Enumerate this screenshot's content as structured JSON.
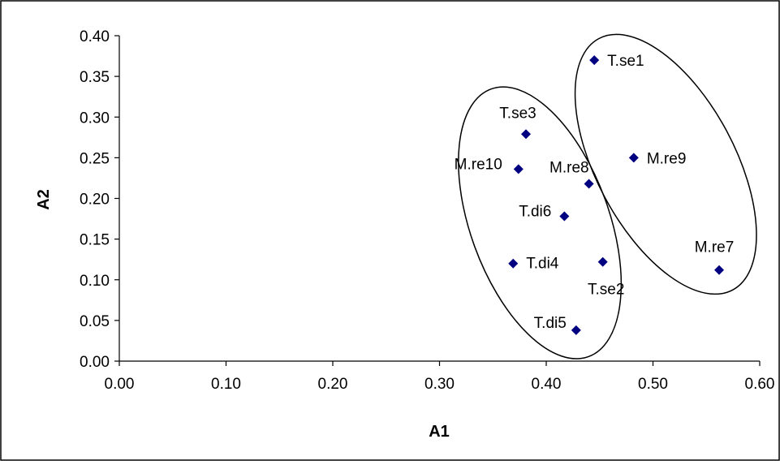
{
  "chart_data": {
    "type": "scatter",
    "title": "",
    "xlabel": "A1",
    "ylabel": "A2",
    "xlim": [
      0,
      0.6
    ],
    "ylim": [
      0,
      0.4
    ],
    "xticks": [
      "0.00",
      "0.10",
      "0.20",
      "0.30",
      "0.40",
      "0.50",
      "0.60"
    ],
    "yticks": [
      "0.00",
      "0.05",
      "0.10",
      "0.15",
      "0.20",
      "0.25",
      "0.30",
      "0.35",
      "0.40"
    ],
    "grid": false,
    "legend": "none",
    "marker_color": "#000080",
    "points": [
      {
        "label": "T.se1",
        "x": 0.445,
        "y": 0.37
      },
      {
        "label": "T.se3",
        "x": 0.381,
        "y": 0.279
      },
      {
        "label": "M.re9",
        "x": 0.482,
        "y": 0.25
      },
      {
        "label": "M.re10",
        "x": 0.374,
        "y": 0.236
      },
      {
        "label": "M.re8",
        "x": 0.44,
        "y": 0.218
      },
      {
        "label": "T.di6",
        "x": 0.417,
        "y": 0.178
      },
      {
        "label": "M.re7",
        "x": 0.562,
        "y": 0.112
      },
      {
        "label": "T.di4",
        "x": 0.369,
        "y": 0.12
      },
      {
        "label": "T.se2",
        "x": 0.453,
        "y": 0.122
      },
      {
        "label": "T.di5",
        "x": 0.428,
        "y": 0.038
      }
    ],
    "clusters": [
      {
        "members": [
          "T.se1",
          "M.re9",
          "M.re7"
        ],
        "cx": 0.512,
        "cy": 0.242,
        "rx": 0.065,
        "ry": 0.175,
        "angle": -28
      },
      {
        "members": [
          "T.se3",
          "M.re10",
          "M.re8",
          "T.di6",
          "T.di4",
          "T.se2",
          "T.di5"
        ],
        "cx": 0.394,
        "cy": 0.17,
        "rx": 0.065,
        "ry": 0.175,
        "angle": -20
      }
    ]
  }
}
